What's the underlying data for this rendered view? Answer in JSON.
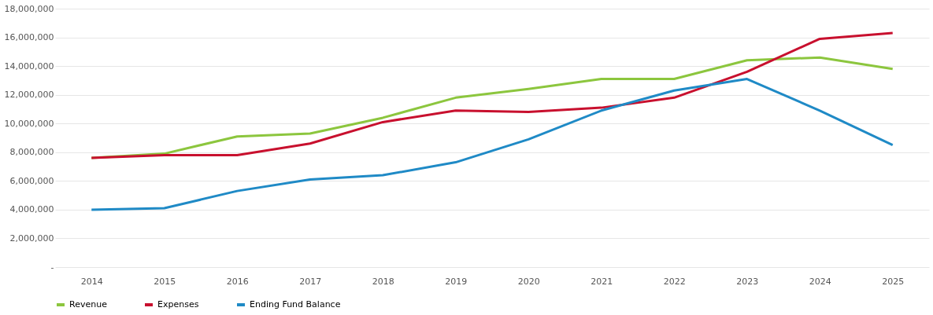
{
  "chart_data": {
    "type": "line",
    "categories": [
      "2014",
      "2015",
      "2016",
      "2017",
      "2018",
      "2019",
      "2020",
      "2021",
      "2022",
      "2023",
      "2024",
      "2025"
    ],
    "series": [
      {
        "name": "Revenue",
        "color": "#8cc63e",
        "values": [
          7600000,
          7900000,
          9100000,
          9300000,
          10400000,
          11800000,
          12400000,
          13100000,
          13100000,
          14400000,
          14600000,
          13800000
        ]
      },
      {
        "name": "Expenses",
        "color": "#c8102e",
        "values": [
          7600000,
          7800000,
          7800000,
          8600000,
          10100000,
          10900000,
          10800000,
          11100000,
          11800000,
          13600000,
          15900000,
          16300000
        ]
      },
      {
        "name": "Ending Fund Balance",
        "color": "#1f8ac6",
        "values": [
          4000000,
          4100000,
          5300000,
          6100000,
          6400000,
          7300000,
          8900000,
          10900000,
          12300000,
          13100000,
          10900000,
          8500000
        ]
      }
    ],
    "ylim": [
      0,
      18000000
    ],
    "yticks": [
      {
        "value": 0,
        "label": "-"
      },
      {
        "value": 2000000,
        "label": "2,000,000"
      },
      {
        "value": 4000000,
        "label": "4,000,000"
      },
      {
        "value": 6000000,
        "label": "6,000,000"
      },
      {
        "value": 8000000,
        "label": "8,000,000"
      },
      {
        "value": 10000000,
        "label": "10,000,000"
      },
      {
        "value": 12000000,
        "label": "12,000,000"
      },
      {
        "value": 14000000,
        "label": "14,000,000"
      },
      {
        "value": 16000000,
        "label": "16,000,000"
      },
      {
        "value": 18000000,
        "label": "18,000,000"
      }
    ],
    "grid": "y",
    "legend": "bottom",
    "marker": "none",
    "line_style": "solid"
  }
}
